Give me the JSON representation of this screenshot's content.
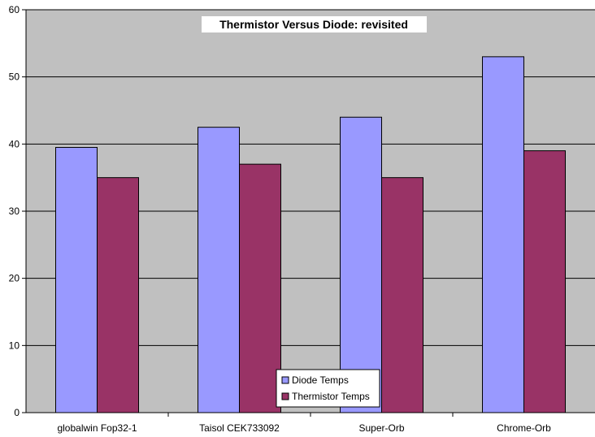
{
  "chart_data": {
    "type": "bar",
    "title": "Thermistor Versus Diode: revisited",
    "xlabel": "",
    "ylabel": "",
    "categories": [
      "globalwin Fop32-1",
      "Taisol CEK733092",
      "Super-Orb",
      "Chrome-Orb"
    ],
    "series": [
      {
        "name": "Diode Temps",
        "color": "#9999ff",
        "values": [
          39.5,
          42.5,
          44,
          53
        ]
      },
      {
        "name": "Thermistor Temps",
        "color": "#993366",
        "values": [
          35,
          37,
          35,
          39
        ]
      }
    ],
    "ylim": [
      0,
      60
    ],
    "yticks": [
      0,
      10,
      20,
      30,
      40,
      50,
      60
    ],
    "grid": true,
    "plot_background": "#c0c0c0",
    "legend_position": "bottom-center"
  }
}
